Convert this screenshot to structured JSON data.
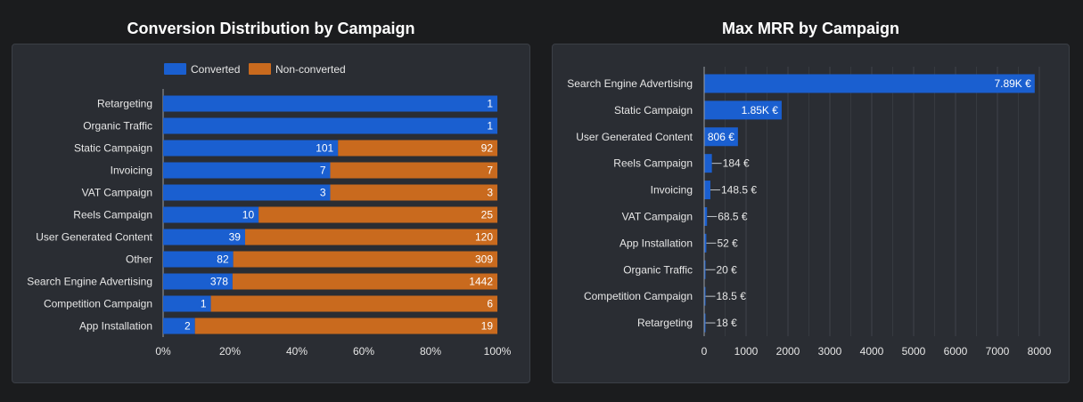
{
  "left_chart": {
    "title": "Conversion Distribution by Campaign",
    "chart_data": {
      "type": "bar",
      "orientation": "horizontal",
      "stacked": "percent",
      "categories": [
        "Retargeting",
        "Organic Traffic",
        "Static Campaign",
        "Invoicing",
        "VAT Campaign",
        "Reels Campaign",
        "User Generated Content",
        "Other",
        "Search Engine Advertising",
        "Competition Campaign",
        "App Installation"
      ],
      "series": [
        {
          "name": "Converted",
          "color": "#1a5fd0",
          "values": [
            1,
            1,
            101,
            7,
            3,
            10,
            39,
            82,
            378,
            1,
            2
          ]
        },
        {
          "name": "Non-converted",
          "color": "#c96a1e",
          "values": [
            0,
            0,
            92,
            7,
            3,
            25,
            120,
            309,
            1442,
            6,
            19
          ]
        }
      ],
      "x_ticks": [
        "0%",
        "20%",
        "40%",
        "60%",
        "80%",
        "100%"
      ],
      "xlim": [
        0,
        100
      ],
      "legend": "top-center",
      "grid": false
    }
  },
  "right_chart": {
    "title": "Max MRR by Campaign",
    "chart_data": {
      "type": "bar",
      "orientation": "horizontal",
      "categories": [
        "Search Engine Advertising",
        "Static Campaign",
        "User Generated Content",
        "Reels Campaign",
        "Invoicing",
        "VAT Campaign",
        "App Installation",
        "Organic Traffic",
        "Competition Campaign",
        "Retargeting"
      ],
      "values": [
        7890,
        1850,
        806,
        184,
        148.5,
        68.5,
        52,
        20,
        18.5,
        18
      ],
      "value_labels": [
        "7.89K €",
        "1.85K €",
        "806 €",
        "184 €",
        "148.5 €",
        "68.5 €",
        "52 €",
        "20 €",
        "18.5 €",
        "18 €"
      ],
      "color": "#1a5fd0",
      "x_ticks": [
        "0",
        "1000",
        "2000",
        "3000",
        "4000",
        "5000",
        "6000",
        "7000",
        "8000"
      ],
      "xlim": [
        0,
        8000
      ],
      "grid": true
    }
  }
}
